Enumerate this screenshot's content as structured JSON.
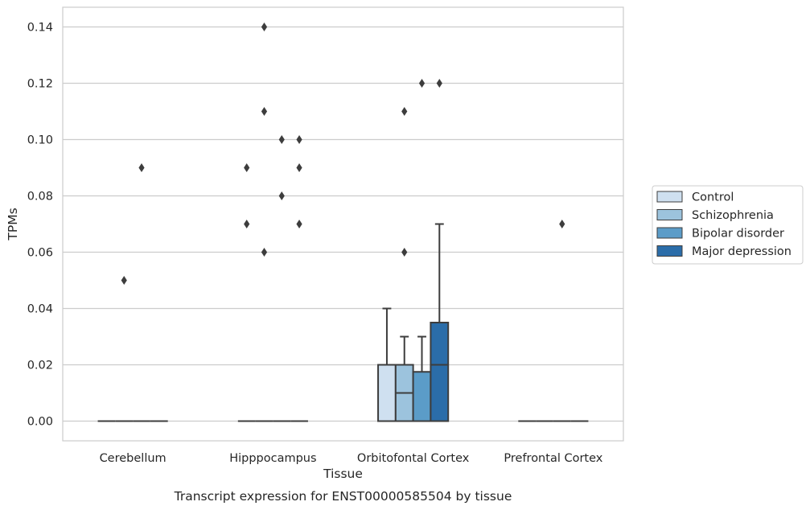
{
  "chart_data": {
    "type": "box",
    "categories": [
      "Cerebellum",
      "Hipppocampus",
      "Orbitofontal Cortex",
      "Prefrontal Cortex"
    ],
    "xlabel": "Tissue",
    "ylabel": "TPMs",
    "caption": "Transcript expression for ENST00000585504 by tissue",
    "ylim": [
      -0.007,
      0.147
    ],
    "yticks": [
      "0.00",
      "0.02",
      "0.04",
      "0.06",
      "0.08",
      "0.10",
      "0.12",
      "0.14"
    ],
    "grid": "horizontal",
    "legend_placement": "outside-right",
    "series": [
      {
        "name": "Control",
        "color": "#cfe0f0",
        "boxes": [
          {
            "q1": 0,
            "median": 0,
            "q3": 0,
            "whisker_low": 0,
            "whisker_high": 0,
            "outliers": []
          },
          {
            "q1": 0,
            "median": 0,
            "q3": 0,
            "whisker_low": 0,
            "whisker_high": 0,
            "outliers": [
              0.09,
              0.07
            ]
          },
          {
            "q1": 0,
            "median": 0,
            "q3": 0.02,
            "whisker_low": 0,
            "whisker_high": 0.04,
            "outliers": []
          },
          {
            "q1": 0,
            "median": 0,
            "q3": 0,
            "whisker_low": 0,
            "whisker_high": 0,
            "outliers": []
          }
        ]
      },
      {
        "name": "Schizophrenia",
        "color": "#9cc3dd",
        "boxes": [
          {
            "q1": 0,
            "median": 0,
            "q3": 0,
            "whisker_low": 0,
            "whisker_high": 0,
            "outliers": [
              0.05
            ]
          },
          {
            "q1": 0,
            "median": 0,
            "q3": 0,
            "whisker_low": 0,
            "whisker_high": 0,
            "outliers": [
              0.14,
              0.11,
              0.06
            ]
          },
          {
            "q1": 0,
            "median": 0.01,
            "q3": 0.02,
            "whisker_low": 0,
            "whisker_high": 0.03,
            "outliers": [
              0.11,
              0.06
            ]
          },
          {
            "q1": 0,
            "median": 0,
            "q3": 0,
            "whisker_low": 0,
            "whisker_high": 0,
            "outliers": []
          }
        ]
      },
      {
        "name": "Bipolar disorder",
        "color": "#5b9cc8",
        "boxes": [
          {
            "q1": 0,
            "median": 0,
            "q3": 0,
            "whisker_low": 0,
            "whisker_high": 0,
            "outliers": [
              0.09
            ]
          },
          {
            "q1": 0,
            "median": 0,
            "q3": 0,
            "whisker_low": 0,
            "whisker_high": 0,
            "outliers": [
              0.1,
              0.08
            ]
          },
          {
            "q1": 0,
            "median": 0,
            "q3": 0.0175,
            "whisker_low": 0,
            "whisker_high": 0.03,
            "outliers": [
              0.12
            ]
          },
          {
            "q1": 0,
            "median": 0,
            "q3": 0,
            "whisker_low": 0,
            "whisker_high": 0,
            "outliers": [
              0.07
            ]
          }
        ]
      },
      {
        "name": "Major depression",
        "color": "#2b6da9",
        "boxes": [
          {
            "q1": 0,
            "median": 0,
            "q3": 0,
            "whisker_low": 0,
            "whisker_high": 0,
            "outliers": []
          },
          {
            "q1": 0,
            "median": 0,
            "q3": 0,
            "whisker_low": 0,
            "whisker_high": 0,
            "outliers": [
              0.1,
              0.09,
              0.07
            ]
          },
          {
            "q1": 0,
            "median": 0.02,
            "q3": 0.035,
            "whisker_low": 0,
            "whisker_high": 0.07,
            "outliers": [
              0.12
            ]
          },
          {
            "q1": 0,
            "median": 0,
            "q3": 0,
            "whisker_low": 0,
            "whisker_high": 0,
            "outliers": []
          }
        ]
      }
    ],
    "colors": {
      "grid": "#cccccc",
      "frame": "#cccccc",
      "line": "#3d3d3d"
    }
  }
}
